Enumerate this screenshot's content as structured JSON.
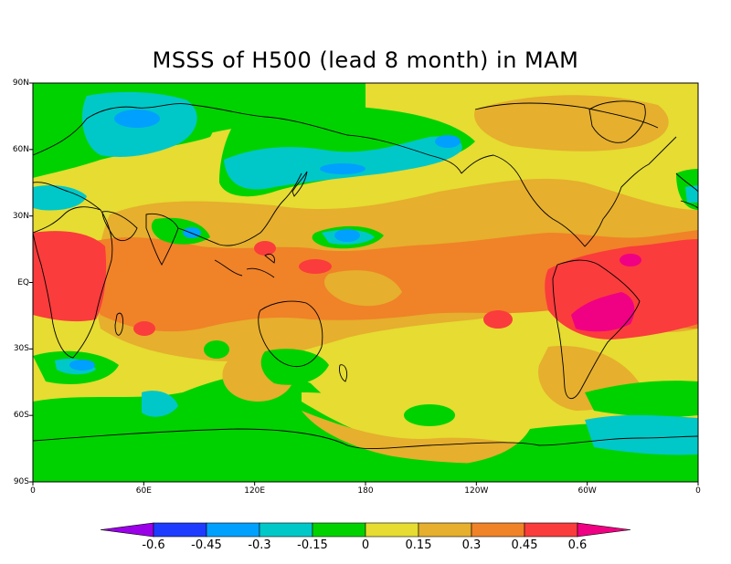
{
  "title": "MSSS of H500 (lead 8 month) in MAM",
  "map": {
    "lat_labels": [
      "90N",
      "60N",
      "30N",
      "EQ",
      "30S",
      "60S",
      "90S"
    ],
    "lon_labels": [
      "0",
      "60E",
      "120E",
      "180",
      "120W",
      "60W",
      "0"
    ],
    "colors": {
      "n060": "#9b00e8",
      "n045": "#1e3cff",
      "n030": "#00a0ff",
      "n015": "#00c8c8",
      "p000": "#00d200",
      "p015": "#e6dc32",
      "p030": "#e6af2d",
      "p045": "#f08228",
      "p060": "#fa3c3c",
      "pmax": "#f00082"
    }
  },
  "colorbar": {
    "labels": [
      "-0.6",
      "-0.45",
      "-0.3",
      "-0.15",
      "0",
      "0.15",
      "0.3",
      "0.45",
      "0.6"
    ],
    "colors": [
      "#9b00e8",
      "#1e3cff",
      "#00a0ff",
      "#00c8c8",
      "#00d200",
      "#e6dc32",
      "#e6af2d",
      "#f08228",
      "#fa3c3c",
      "#f00082"
    ]
  }
}
